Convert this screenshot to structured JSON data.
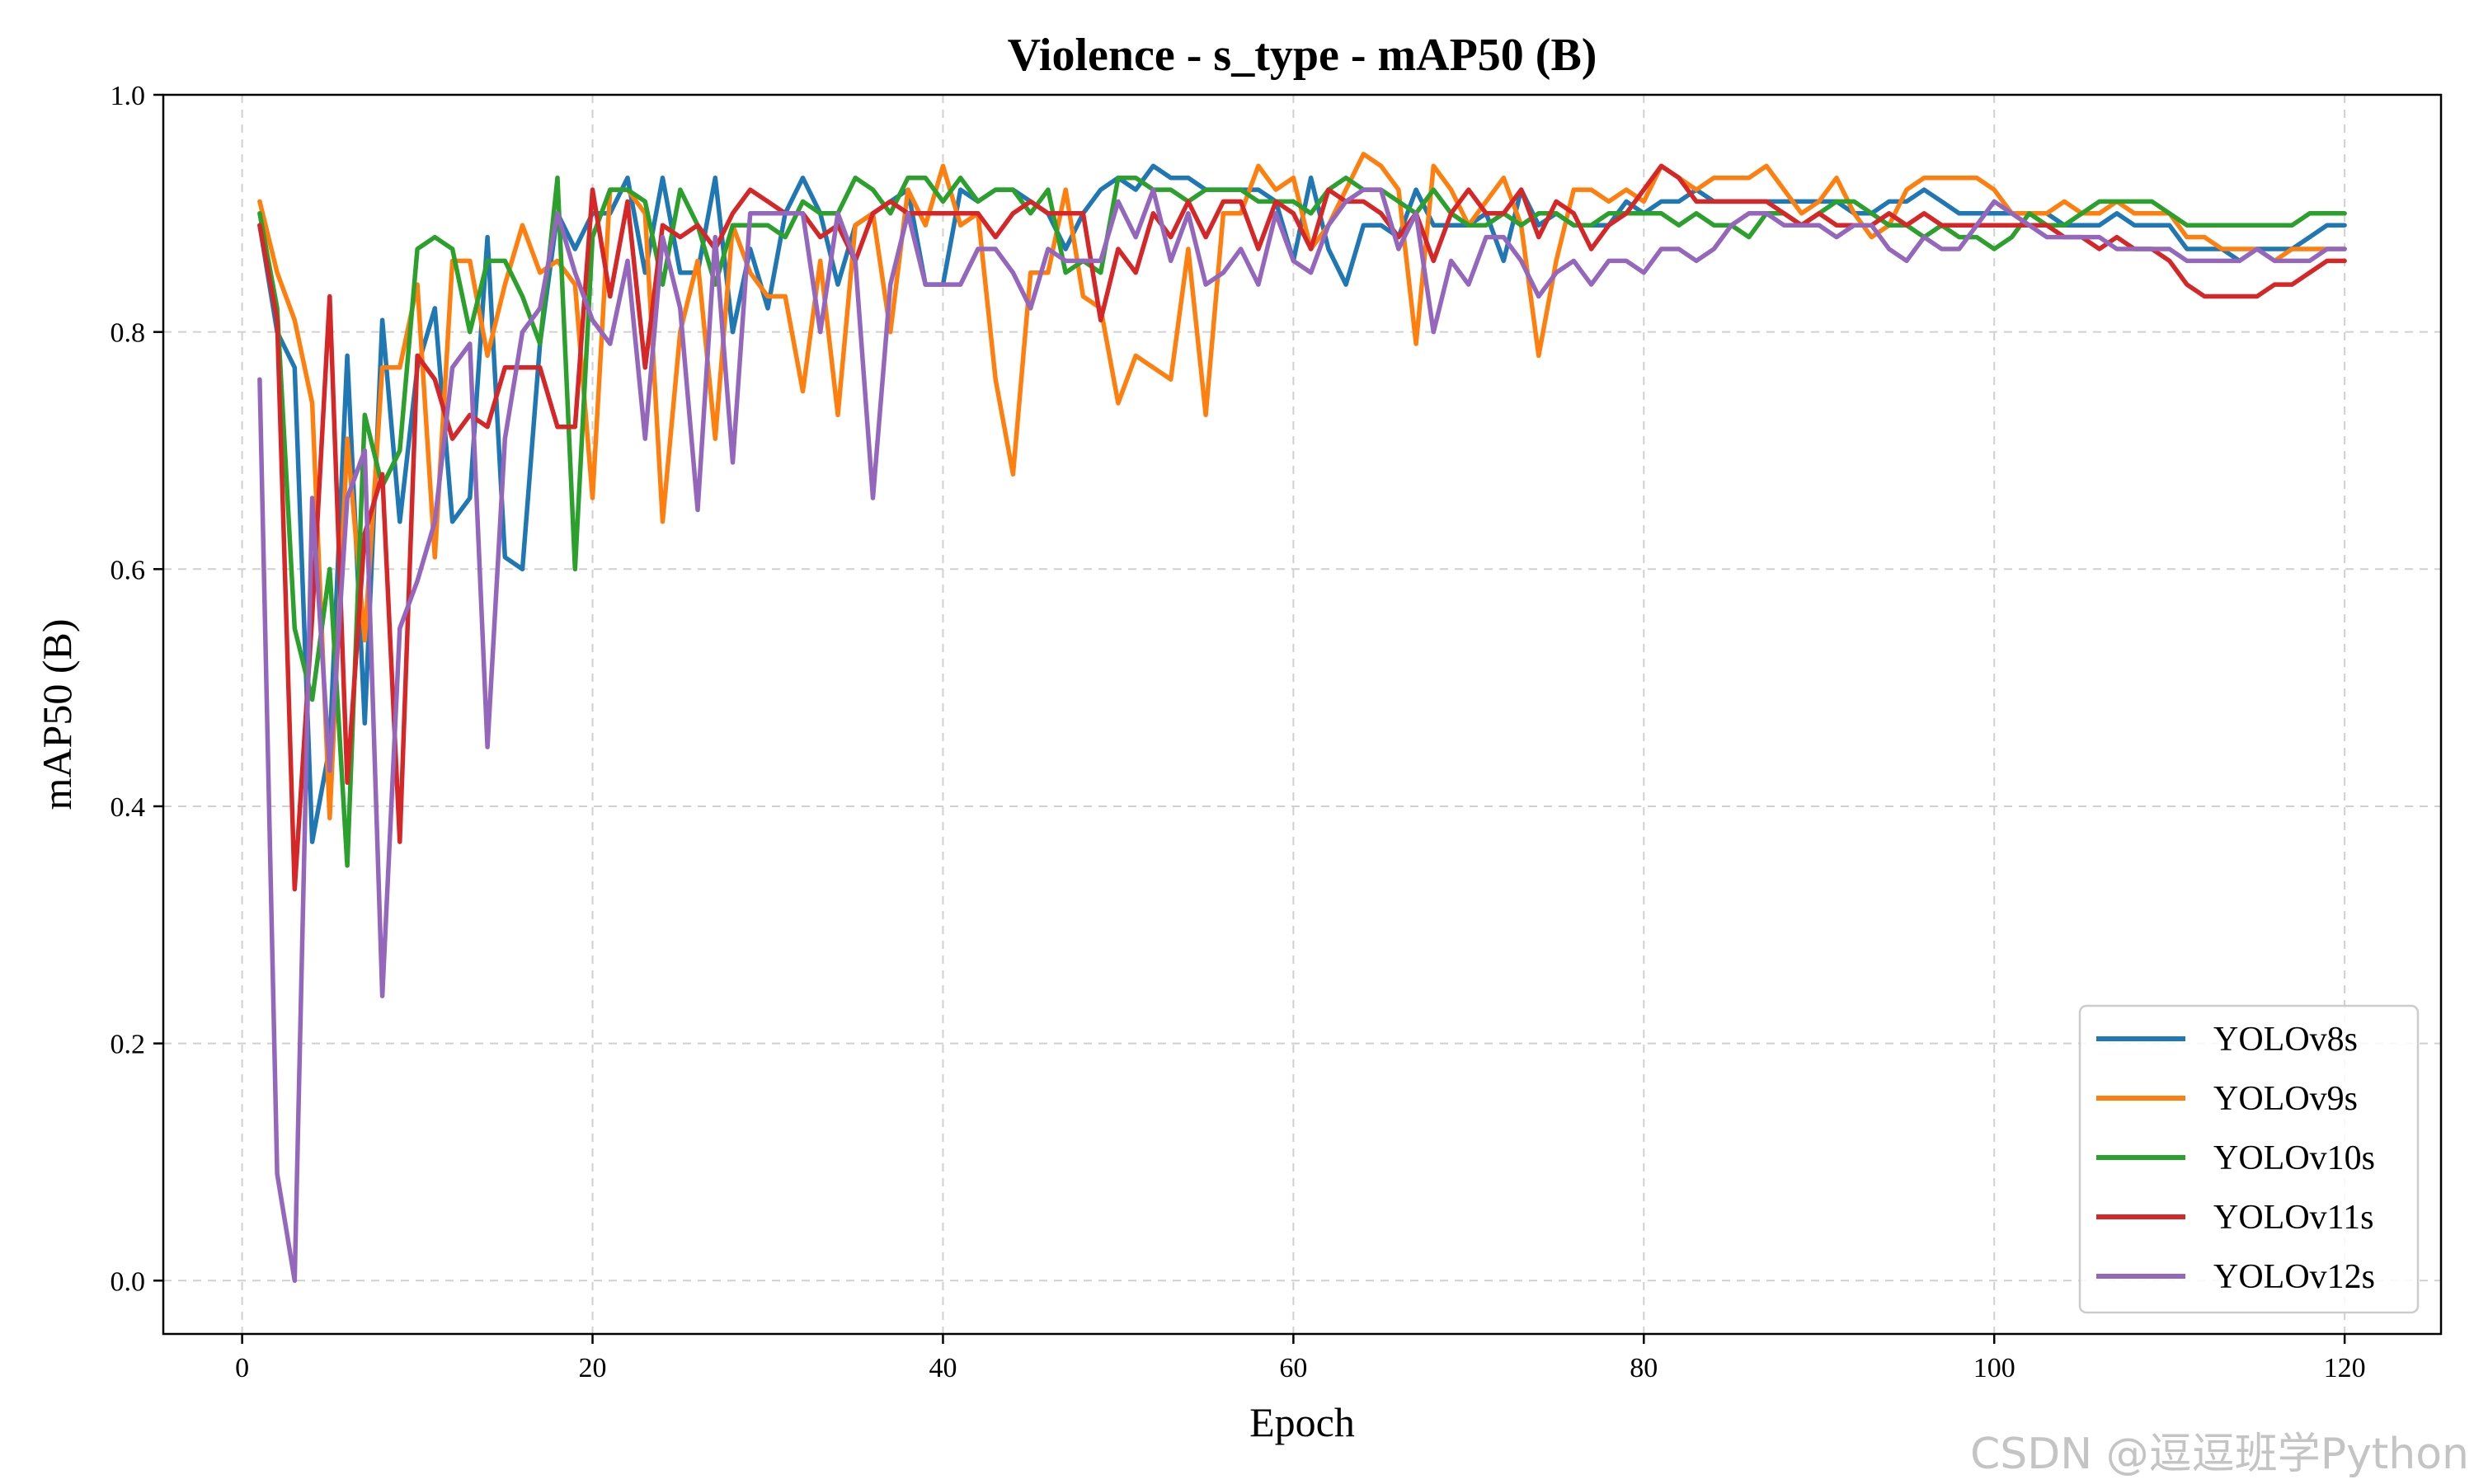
{
  "chart_data": {
    "type": "line",
    "title": "Violence - s_type - mAP50 (B)",
    "xlabel": "Epoch",
    "ylabel": "mAP50 (B)",
    "xlim": [
      -4.5,
      125.5
    ],
    "ylim": [
      -0.045,
      1.0
    ],
    "xticks": [
      "0",
      "20",
      "40",
      "60",
      "80",
      "100",
      "120"
    ],
    "xtick_values": [
      0,
      20,
      40,
      60,
      80,
      100,
      120
    ],
    "yticks": [
      "0.0",
      "0.2",
      "0.4",
      "0.6",
      "0.8",
      "1.0"
    ],
    "ytick_values": [
      0.0,
      0.2,
      0.4,
      0.6,
      0.8,
      1.0
    ],
    "grid": true,
    "legend_position": "lower-right",
    "x": [
      1,
      2,
      3,
      4,
      5,
      6,
      7,
      8,
      9,
      10,
      11,
      12,
      13,
      14,
      15,
      16,
      17,
      18,
      19,
      20,
      21,
      22,
      23,
      24,
      25,
      26,
      27,
      28,
      29,
      30,
      31,
      32,
      33,
      34,
      35,
      36,
      37,
      38,
      39,
      40,
      41,
      42,
      43,
      44,
      45,
      46,
      47,
      48,
      49,
      50,
      51,
      52,
      53,
      54,
      55,
      56,
      57,
      58,
      59,
      60,
      61,
      62,
      63,
      64,
      65,
      66,
      67,
      68,
      69,
      70,
      71,
      72,
      73,
      74,
      75,
      76,
      77,
      78,
      79,
      80,
      81,
      82,
      83,
      84,
      85,
      86,
      87,
      88,
      89,
      90,
      91,
      92,
      93,
      94,
      95,
      96,
      97,
      98,
      99,
      100,
      101,
      102,
      103,
      104,
      105,
      106,
      107,
      108,
      109,
      110,
      111,
      112,
      113,
      114,
      115,
      116,
      117,
      118,
      119,
      120
    ],
    "series": [
      {
        "name": "YOLOv8s",
        "color": "#1f77b4",
        "values": [
          0.89,
          0.8,
          0.77,
          0.37,
          0.45,
          0.78,
          0.47,
          0.81,
          0.64,
          0.77,
          0.82,
          0.64,
          0.66,
          0.88,
          0.61,
          0.6,
          0.79,
          0.9,
          0.87,
          0.9,
          0.9,
          0.93,
          0.85,
          0.93,
          0.85,
          0.85,
          0.93,
          0.8,
          0.87,
          0.82,
          0.9,
          0.93,
          0.9,
          0.84,
          0.89,
          0.9,
          0.91,
          0.92,
          0.84,
          0.84,
          0.92,
          0.91,
          0.92,
          0.92,
          0.91,
          0.9,
          0.87,
          0.9,
          0.92,
          0.93,
          0.92,
          0.94,
          0.93,
          0.93,
          0.92,
          0.92,
          0.92,
          0.92,
          0.91,
          0.86,
          0.93,
          0.87,
          0.84,
          0.89,
          0.89,
          0.88,
          0.92,
          0.89,
          0.89,
          0.89,
          0.9,
          0.86,
          0.92,
          0.89,
          0.9,
          0.89,
          0.89,
          0.89,
          0.91,
          0.9,
          0.91,
          0.91,
          0.92,
          0.91,
          0.91,
          0.91,
          0.91,
          0.91,
          0.91,
          0.91,
          0.91,
          0.9,
          0.9,
          0.91,
          0.91,
          0.92,
          0.91,
          0.9,
          0.9,
          0.9,
          0.9,
          0.9,
          0.9,
          0.89,
          0.89,
          0.89,
          0.9,
          0.89,
          0.89,
          0.89,
          0.87,
          0.87,
          0.87,
          0.86,
          0.87,
          0.87,
          0.87,
          0.88,
          0.89,
          0.89
        ]
      },
      {
        "name": "YOLOv9s",
        "color": "#ff7f0e",
        "values": [
          0.91,
          0.85,
          0.81,
          0.74,
          0.39,
          0.71,
          0.54,
          0.77,
          0.77,
          0.84,
          0.61,
          0.86,
          0.86,
          0.78,
          0.84,
          0.89,
          0.85,
          0.86,
          0.84,
          0.66,
          0.92,
          0.92,
          0.9,
          0.64,
          0.8,
          0.86,
          0.71,
          0.89,
          0.85,
          0.83,
          0.83,
          0.75,
          0.86,
          0.73,
          0.89,
          0.9,
          0.8,
          0.92,
          0.89,
          0.94,
          0.89,
          0.9,
          0.76,
          0.68,
          0.85,
          0.85,
          0.92,
          0.83,
          0.82,
          0.74,
          0.78,
          0.77,
          0.76,
          0.87,
          0.73,
          0.9,
          0.9,
          0.94,
          0.92,
          0.93,
          0.87,
          0.89,
          0.92,
          0.95,
          0.94,
          0.92,
          0.79,
          0.94,
          0.92,
          0.89,
          0.91,
          0.93,
          0.89,
          0.78,
          0.86,
          0.92,
          0.92,
          0.91,
          0.92,
          0.91,
          0.94,
          0.93,
          0.92,
          0.93,
          0.93,
          0.93,
          0.94,
          0.92,
          0.9,
          0.91,
          0.93,
          0.9,
          0.88,
          0.89,
          0.92,
          0.93,
          0.93,
          0.93,
          0.93,
          0.92,
          0.9,
          0.9,
          0.9,
          0.91,
          0.9,
          0.9,
          0.91,
          0.9,
          0.9,
          0.9,
          0.88,
          0.88,
          0.87,
          0.87,
          0.87,
          0.86,
          0.87,
          0.87,
          0.87,
          0.87
        ]
      },
      {
        "name": "YOLOv10s",
        "color": "#2ca02c",
        "values": [
          0.9,
          0.82,
          0.55,
          0.49,
          0.6,
          0.35,
          0.73,
          0.67,
          0.7,
          0.87,
          0.88,
          0.87,
          0.8,
          0.86,
          0.86,
          0.83,
          0.79,
          0.93,
          0.6,
          0.88,
          0.92,
          0.92,
          0.91,
          0.84,
          0.92,
          0.89,
          0.84,
          0.89,
          0.89,
          0.89,
          0.88,
          0.91,
          0.9,
          0.9,
          0.93,
          0.92,
          0.9,
          0.93,
          0.93,
          0.91,
          0.93,
          0.91,
          0.92,
          0.92,
          0.9,
          0.92,
          0.85,
          0.86,
          0.85,
          0.93,
          0.93,
          0.92,
          0.92,
          0.91,
          0.92,
          0.92,
          0.92,
          0.91,
          0.91,
          0.91,
          0.9,
          0.92,
          0.93,
          0.92,
          0.92,
          0.91,
          0.9,
          0.92,
          0.9,
          0.89,
          0.89,
          0.9,
          0.89,
          0.9,
          0.9,
          0.89,
          0.89,
          0.9,
          0.9,
          0.9,
          0.9,
          0.89,
          0.9,
          0.89,
          0.89,
          0.88,
          0.9,
          0.9,
          0.89,
          0.9,
          0.91,
          0.91,
          0.9,
          0.89,
          0.89,
          0.88,
          0.89,
          0.88,
          0.88,
          0.87,
          0.88,
          0.9,
          0.89,
          0.89,
          0.9,
          0.91,
          0.91,
          0.91,
          0.91,
          0.9,
          0.89,
          0.89,
          0.89,
          0.89,
          0.89,
          0.89,
          0.89,
          0.9,
          0.9,
          0.9
        ]
      },
      {
        "name": "YOLOv11s",
        "color": "#d62728",
        "values": [
          0.89,
          0.81,
          0.33,
          0.56,
          0.83,
          0.42,
          0.63,
          0.68,
          0.37,
          0.78,
          0.76,
          0.71,
          0.73,
          0.72,
          0.77,
          0.77,
          0.77,
          0.72,
          0.72,
          0.92,
          0.83,
          0.91,
          0.77,
          0.89,
          0.88,
          0.89,
          0.87,
          0.9,
          0.92,
          0.91,
          0.9,
          0.9,
          0.88,
          0.89,
          0.86,
          0.9,
          0.91,
          0.9,
          0.9,
          0.9,
          0.9,
          0.9,
          0.88,
          0.9,
          0.91,
          0.9,
          0.9,
          0.9,
          0.81,
          0.87,
          0.85,
          0.9,
          0.88,
          0.91,
          0.88,
          0.91,
          0.91,
          0.87,
          0.91,
          0.9,
          0.87,
          0.92,
          0.91,
          0.91,
          0.9,
          0.88,
          0.9,
          0.86,
          0.9,
          0.92,
          0.9,
          0.9,
          0.92,
          0.88,
          0.91,
          0.9,
          0.87,
          0.89,
          0.9,
          0.92,
          0.94,
          0.93,
          0.91,
          0.91,
          0.91,
          0.91,
          0.91,
          0.9,
          0.89,
          0.9,
          0.89,
          0.89,
          0.89,
          0.9,
          0.89,
          0.9,
          0.89,
          0.89,
          0.89,
          0.89,
          0.89,
          0.89,
          0.89,
          0.88,
          0.88,
          0.87,
          0.88,
          0.87,
          0.87,
          0.86,
          0.84,
          0.83,
          0.83,
          0.83,
          0.83,
          0.84,
          0.84,
          0.85,
          0.86,
          0.86
        ]
      },
      {
        "name": "YOLOv12s",
        "color": "#9467bd",
        "values": [
          0.76,
          0.09,
          0.0,
          0.66,
          0.43,
          0.66,
          0.7,
          0.24,
          0.55,
          0.59,
          0.64,
          0.77,
          0.79,
          0.45,
          0.71,
          0.8,
          0.82,
          0.9,
          0.85,
          0.81,
          0.79,
          0.86,
          0.71,
          0.88,
          0.82,
          0.65,
          0.88,
          0.69,
          0.9,
          0.9,
          0.9,
          0.9,
          0.8,
          0.9,
          0.86,
          0.66,
          0.84,
          0.9,
          0.84,
          0.84,
          0.84,
          0.87,
          0.87,
          0.85,
          0.82,
          0.87,
          0.86,
          0.86,
          0.86,
          0.91,
          0.88,
          0.92,
          0.86,
          0.9,
          0.84,
          0.85,
          0.87,
          0.84,
          0.9,
          0.86,
          0.85,
          0.89,
          0.91,
          0.92,
          0.92,
          0.87,
          0.9,
          0.8,
          0.86,
          0.84,
          0.88,
          0.88,
          0.86,
          0.83,
          0.85,
          0.86,
          0.84,
          0.86,
          0.86,
          0.85,
          0.87,
          0.87,
          0.86,
          0.87,
          0.89,
          0.9,
          0.9,
          0.89,
          0.89,
          0.89,
          0.88,
          0.89,
          0.89,
          0.87,
          0.86,
          0.88,
          0.87,
          0.87,
          0.89,
          0.91,
          0.9,
          0.89,
          0.88,
          0.88,
          0.88,
          0.88,
          0.87,
          0.87,
          0.87,
          0.87,
          0.86,
          0.86,
          0.86,
          0.86,
          0.87,
          0.86,
          0.86,
          0.86,
          0.87,
          0.87
        ]
      }
    ]
  },
  "watermark": "CSDN @逗逗班学Python"
}
